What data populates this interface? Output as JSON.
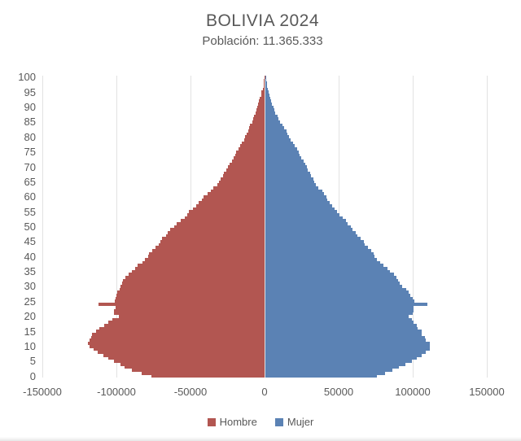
{
  "header": {
    "title": "BOLIVIA 2024",
    "subtitle": "Población: 11.365.333"
  },
  "chart_data": {
    "type": "bar",
    "variant": "population-pyramid",
    "title": "BOLIVIA 2024",
    "subtitle": "Población: 11.365.333",
    "xlabel": "",
    "ylabel": "",
    "xlim": [
      -150000,
      150000
    ],
    "x_ticks": [
      -150000,
      -100000,
      -50000,
      0,
      50000,
      100000,
      150000
    ],
    "x_tick_labels": [
      "-150000",
      "-100000",
      "-50000",
      "0",
      "50000",
      "100000",
      "150000"
    ],
    "y_ticks": [
      0,
      5,
      10,
      15,
      20,
      25,
      30,
      35,
      40,
      45,
      50,
      55,
      60,
      65,
      70,
      75,
      80,
      85,
      90,
      95,
      100
    ],
    "grid": true,
    "legend_position": "bottom",
    "colors": {
      "male": "#b25651",
      "female": "#5b82b4",
      "gridline": "#e2e2e2",
      "text": "#595959"
    },
    "ages": [
      0,
      1,
      2,
      3,
      4,
      5,
      6,
      7,
      8,
      9,
      10,
      11,
      12,
      13,
      14,
      15,
      16,
      17,
      18,
      19,
      20,
      21,
      22,
      23,
      24,
      25,
      26,
      27,
      28,
      29,
      30,
      31,
      32,
      33,
      34,
      35,
      36,
      37,
      38,
      39,
      40,
      41,
      42,
      43,
      44,
      45,
      46,
      47,
      48,
      49,
      50,
      51,
      52,
      53,
      54,
      55,
      56,
      57,
      58,
      59,
      60,
      61,
      62,
      63,
      64,
      65,
      66,
      67,
      68,
      69,
      70,
      71,
      72,
      73,
      74,
      75,
      76,
      77,
      78,
      79,
      80,
      81,
      82,
      83,
      84,
      85,
      86,
      87,
      88,
      89,
      90,
      91,
      92,
      93,
      94,
      95,
      96,
      97,
      98,
      99,
      100
    ],
    "series": [
      {
        "name": "Hombre",
        "key": "male",
        "color": "#b25651",
        "values": [
          76500,
          83000,
          89500,
          94500,
          97500,
          101500,
          105500,
          109000,
          112500,
          115500,
          118000,
          119000,
          118000,
          117000,
          116500,
          113500,
          111500,
          108500,
          105500,
          102500,
          98500,
          101500,
          101500,
          100500,
          112000,
          101000,
          100500,
          100000,
          99500,
          98000,
          97000,
          96000,
          95500,
          94000,
          92000,
          89500,
          87500,
          85500,
          82500,
          80500,
          78500,
          78000,
          76000,
          73500,
          71500,
          70500,
          69000,
          66500,
          65500,
          63500,
          61000,
          59500,
          56500,
          54000,
          52000,
          51000,
          48500,
          46000,
          44500,
          42500,
          41000,
          38500,
          36500,
          34500,
          32000,
          30500,
          29500,
          28000,
          27500,
          26000,
          24500,
          23500,
          22000,
          21000,
          20000,
          19000,
          17500,
          16500,
          15500,
          14000,
          13000,
          12000,
          11000,
          10500,
          9700,
          8500,
          7800,
          7200,
          6100,
          5600,
          5200,
          4600,
          4000,
          3500,
          2400,
          2000,
          1300,
          800,
          600,
          300,
          200
        ]
      },
      {
        "name": "Mujer",
        "key": "female",
        "color": "#5b82b4",
        "values": [
          75500,
          81000,
          86000,
          90500,
          95000,
          99000,
          102500,
          105500,
          108500,
          111500,
          111500,
          111000,
          108500,
          108000,
          106000,
          105500,
          103000,
          102500,
          100500,
          99000,
          97000,
          99500,
          100000,
          100000,
          109500,
          101000,
          99500,
          98000,
          97000,
          95500,
          92500,
          91000,
          90000,
          89000,
          87000,
          84500,
          82500,
          80000,
          77500,
          75500,
          74000,
          73500,
          71500,
          69500,
          67500,
          66500,
          64500,
          62500,
          61000,
          59000,
          58000,
          55500,
          54500,
          52500,
          50500,
          48500,
          47000,
          45500,
          43500,
          42000,
          41500,
          40000,
          38500,
          36000,
          34500,
          33000,
          32500,
          31000,
          30500,
          29000,
          28500,
          27000,
          26000,
          24500,
          23500,
          23000,
          21500,
          20000,
          19000,
          17500,
          16000,
          15000,
          14500,
          13000,
          11600,
          10100,
          9300,
          8300,
          7000,
          6300,
          5700,
          4800,
          4300,
          3700,
          2800,
          2300,
          2000,
          1500,
          1100,
          700,
          500
        ]
      }
    ]
  }
}
